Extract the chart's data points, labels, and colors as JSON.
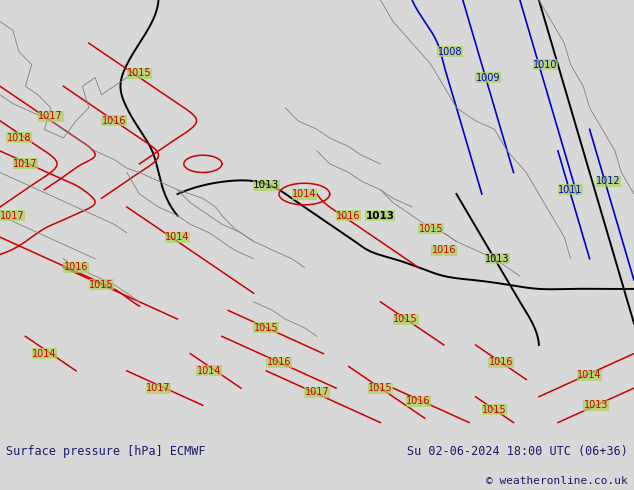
{
  "title_left": "Surface pressure [hPa] ECMWF",
  "title_right": "Su 02-06-2024 18:00 UTC (06+36)",
  "copyright": "© weatheronline.co.uk",
  "bg_color": "#aad45a",
  "footer_bg": "#d8d8d8",
  "footer_text_color": "#1a1a6e",
  "map_bg": "#aad45a",
  "figsize": [
    6.34,
    4.9
  ],
  "dpi": 100
}
